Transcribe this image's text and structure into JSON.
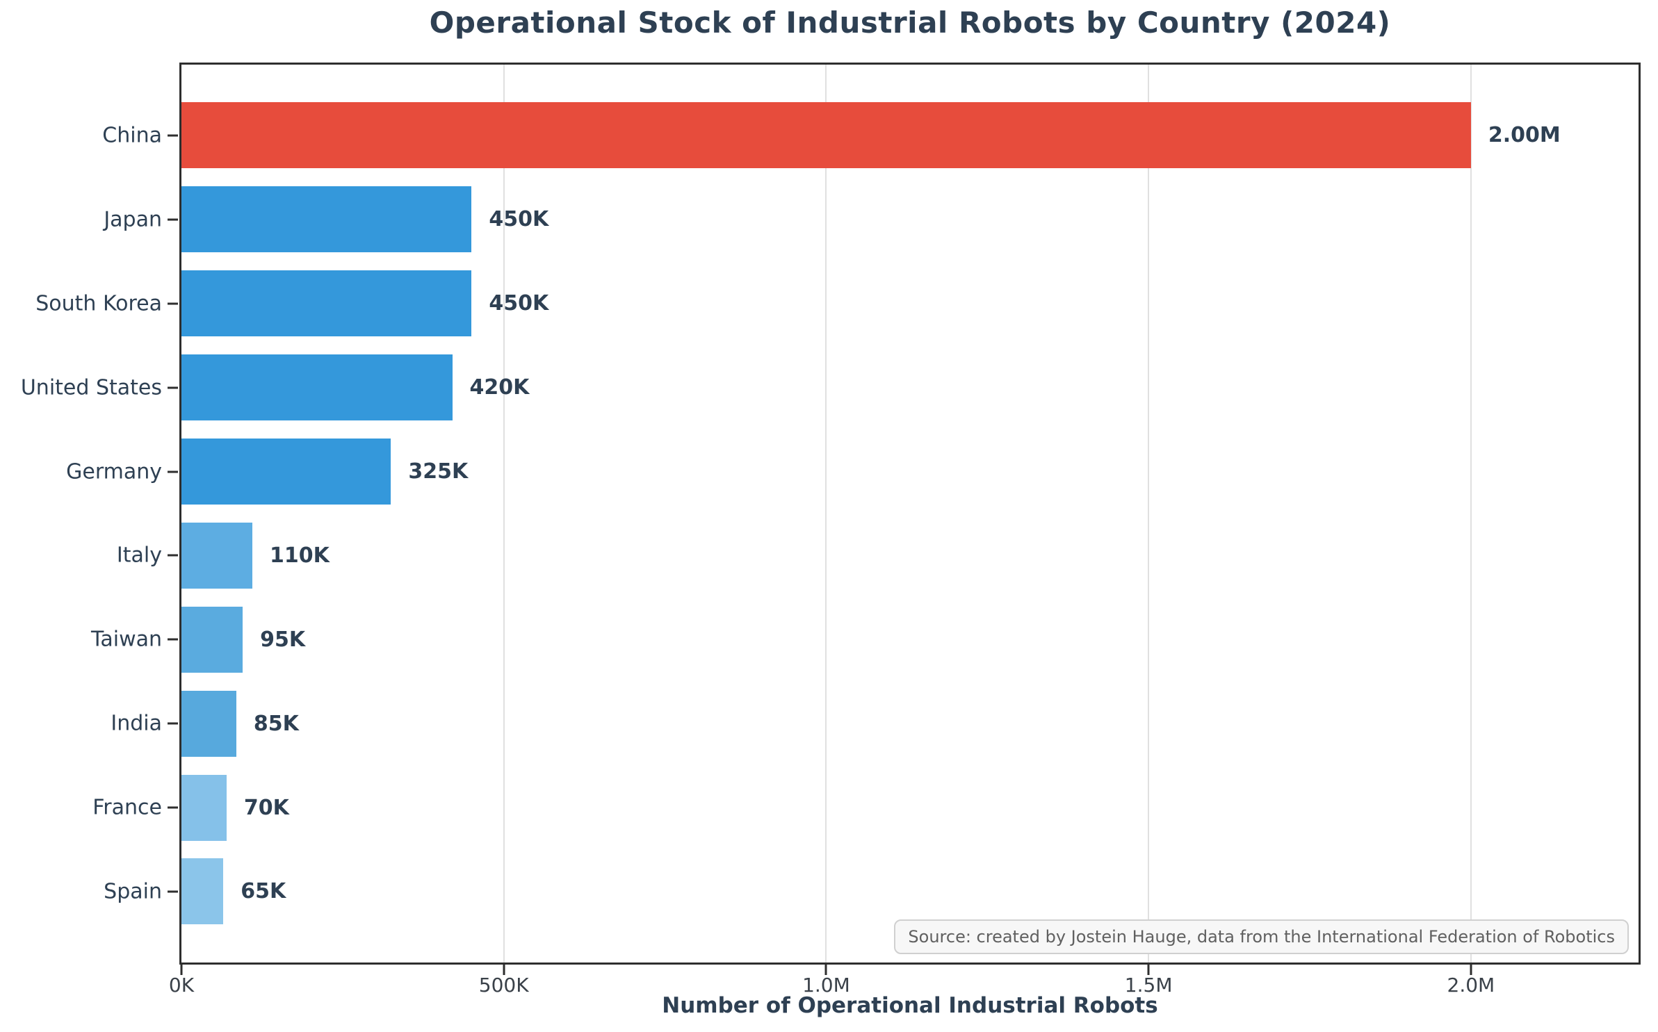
{
  "title": "Operational Stock of Industrial Robots by Country (2024)",
  "chart_data": {
    "type": "bar",
    "orientation": "horizontal",
    "title": "Operational Stock of Industrial Robots by Country (2024)",
    "xlabel": "Number of Operational Industrial Robots",
    "ylabel": "",
    "categories": [
      "China",
      "Japan",
      "South Korea",
      "United States",
      "Germany",
      "Italy",
      "Taiwan",
      "India",
      "France",
      "Spain"
    ],
    "values": [
      2000000,
      450000,
      450000,
      420000,
      325000,
      110000,
      95000,
      85000,
      70000,
      65000
    ],
    "value_labels": [
      "2.00M",
      "450K",
      "450K",
      "420K",
      "325K",
      "110K",
      "95K",
      "85K",
      "70K",
      "65K"
    ],
    "bar_colors": [
      "#e74c3c",
      "#3498db",
      "#3498db",
      "#3498db",
      "#3498db",
      "#5dade2",
      "#5aabdf",
      "#57a9dd",
      "#85c1e9",
      "#8bc5ea"
    ],
    "xlim": [
      0,
      2260000
    ],
    "x_ticks": [
      {
        "value": 0,
        "label": "0K"
      },
      {
        "value": 500000,
        "label": "500K"
      },
      {
        "value": 1000000,
        "label": "1.0M"
      },
      {
        "value": 1500000,
        "label": "1.5M"
      },
      {
        "value": 2000000,
        "label": "2.0M"
      }
    ],
    "grid": "vertical-light",
    "legend": "none",
    "annotation": "Source: created by Jostein Hauge, data from the International Federation of Robotics"
  },
  "colors": {
    "highlight_bar": "#e74c3c",
    "main_bar": "#3498db",
    "title_text": "#2e4053",
    "tick_text": "#3a4149",
    "gridline": "#e0e0e0",
    "spine": "#2e2e2e",
    "source_text": "#606060",
    "source_bg": "#f7f7f7",
    "source_border": "#d0d0d0"
  }
}
